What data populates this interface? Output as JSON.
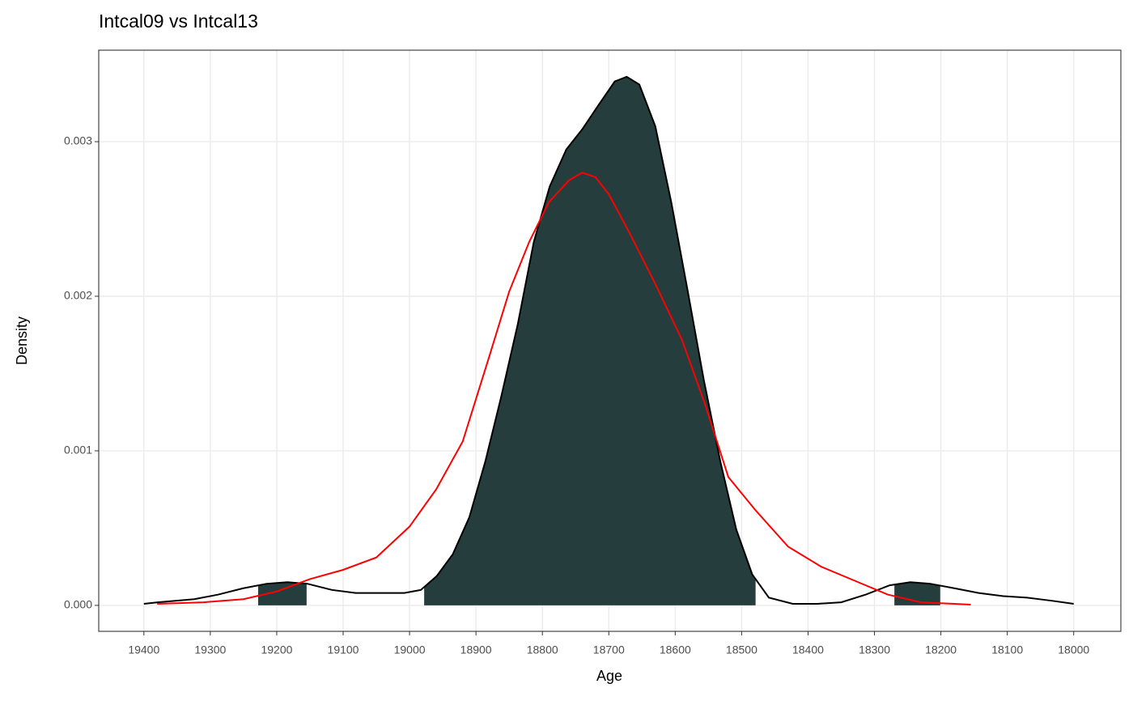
{
  "chart_data": {
    "type": "density",
    "title": "Intcal09 vs Intcal13",
    "x_label": "Age",
    "y_label": "Density",
    "xlim": [
      19468,
      17929
    ],
    "ylim": [
      -0.000168,
      0.003592
    ],
    "xticks": [
      19400,
      19300,
      19200,
      19100,
      19000,
      18900,
      18800,
      18700,
      18600,
      18500,
      18400,
      18300,
      18200,
      18100,
      18000
    ],
    "yticks": [
      {
        "value": 0,
        "label": "0.000"
      },
      {
        "value": 0.001,
        "label": "0.001"
      },
      {
        "value": 0.002,
        "label": "0.002"
      },
      {
        "value": 0.003,
        "label": "0.003"
      }
    ],
    "grid": true,
    "fill_color": "#253d3d",
    "fill_ranges": [
      [
        19228,
        19155
      ],
      [
        18978,
        18479
      ],
      [
        18270,
        18201
      ]
    ],
    "series": [
      {
        "color": "#000000",
        "x": [
          19400,
          19379,
          19324,
          19288,
          19251,
          19215,
          19184,
          19154,
          19117,
          19081,
          19044,
          19008,
          18983,
          18959,
          18935,
          18910,
          18886,
          18862,
          18837,
          18813,
          18789,
          18764,
          18740,
          18715,
          18691,
          18673,
          18654,
          18630,
          18606,
          18581,
          18557,
          18532,
          18508,
          18484,
          18459,
          18423,
          18386,
          18350,
          18313,
          18277,
          18246,
          18216,
          18179,
          18143,
          18106,
          18070,
          18033,
          18000
        ],
        "values": [
          1e-05,
          2e-05,
          4e-05,
          7e-05,
          0.00011,
          0.00014,
          0.00015,
          0.00014,
          0.0001,
          8e-05,
          8e-05,
          8e-05,
          0.0001,
          0.00019,
          0.00033,
          0.00057,
          0.00093,
          0.00135,
          0.00182,
          0.00235,
          0.00271,
          0.00295,
          0.00308,
          0.00324,
          0.00339,
          0.00342,
          0.00337,
          0.0031,
          0.00261,
          0.00203,
          0.00146,
          0.00093,
          0.00049,
          0.0002,
          5e-05,
          1e-05,
          1e-05,
          2e-05,
          7e-05,
          0.00013,
          0.00015,
          0.00014,
          0.00011,
          8e-05,
          6e-05,
          5e-05,
          3e-05,
          1e-05
        ]
      },
      {
        "color": "#ff0000",
        "x": [
          19380,
          19310,
          19250,
          19200,
          19150,
          19100,
          19050,
          19000,
          18960,
          18920,
          18880,
          18850,
          18820,
          18790,
          18760,
          18740,
          18720,
          18700,
          18670,
          18630,
          18590,
          18555,
          18520,
          18480,
          18430,
          18380,
          18330,
          18280,
          18230,
          18180,
          18155
        ],
        "values": [
          1e-05,
          2e-05,
          4e-05,
          9e-05,
          0.00017,
          0.00023,
          0.00031,
          0.00051,
          0.00075,
          0.00106,
          0.00161,
          0.00203,
          0.00235,
          0.00261,
          0.00275,
          0.0028,
          0.00277,
          0.00266,
          0.00242,
          0.00208,
          0.00172,
          0.0013,
          0.00083,
          0.00062,
          0.00038,
          0.00025,
          0.00016,
          7e-05,
          2e-05,
          1e-05,
          5e-06
        ]
      }
    ]
  }
}
